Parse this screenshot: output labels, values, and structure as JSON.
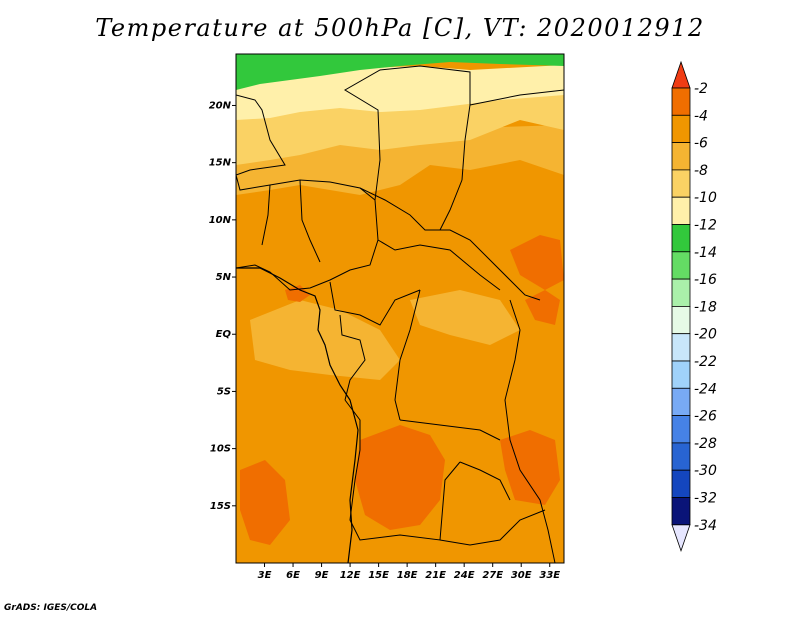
{
  "title": "Temperature at 500hPa [C], VT: 2020012912",
  "credit": "GrADS: IGES/COLA",
  "map": {
    "lon_labels": [
      "3E",
      "6E",
      "9E",
      "12E",
      "15E",
      "18E",
      "21E",
      "24E",
      "27E",
      "30E",
      "33E"
    ],
    "lat_labels": [
      "20N",
      "15N",
      "10N",
      "5N",
      "EQ",
      "5S",
      "10S",
      "15S"
    ]
  },
  "colorbar": {
    "levels": [
      "-2",
      "-4",
      "-6",
      "-8",
      "-10",
      "-12",
      "-14",
      "-16",
      "-18",
      "-20",
      "-22",
      "-24",
      "-26",
      "-28",
      "-30",
      "-32",
      "-34"
    ],
    "colors": [
      "#f03c14",
      "#f06e00",
      "#f09600",
      "#f5b432",
      "#fad264",
      "#fff0aa",
      "#32c83c",
      "#64dc64",
      "#aaf0aa",
      "#e6fae6",
      "#c8e6fa",
      "#a0d2fa",
      "#78aaf5",
      "#4682e6",
      "#2864d2",
      "#1446be",
      "#0a1478",
      "#e6e6ff"
    ]
  }
}
